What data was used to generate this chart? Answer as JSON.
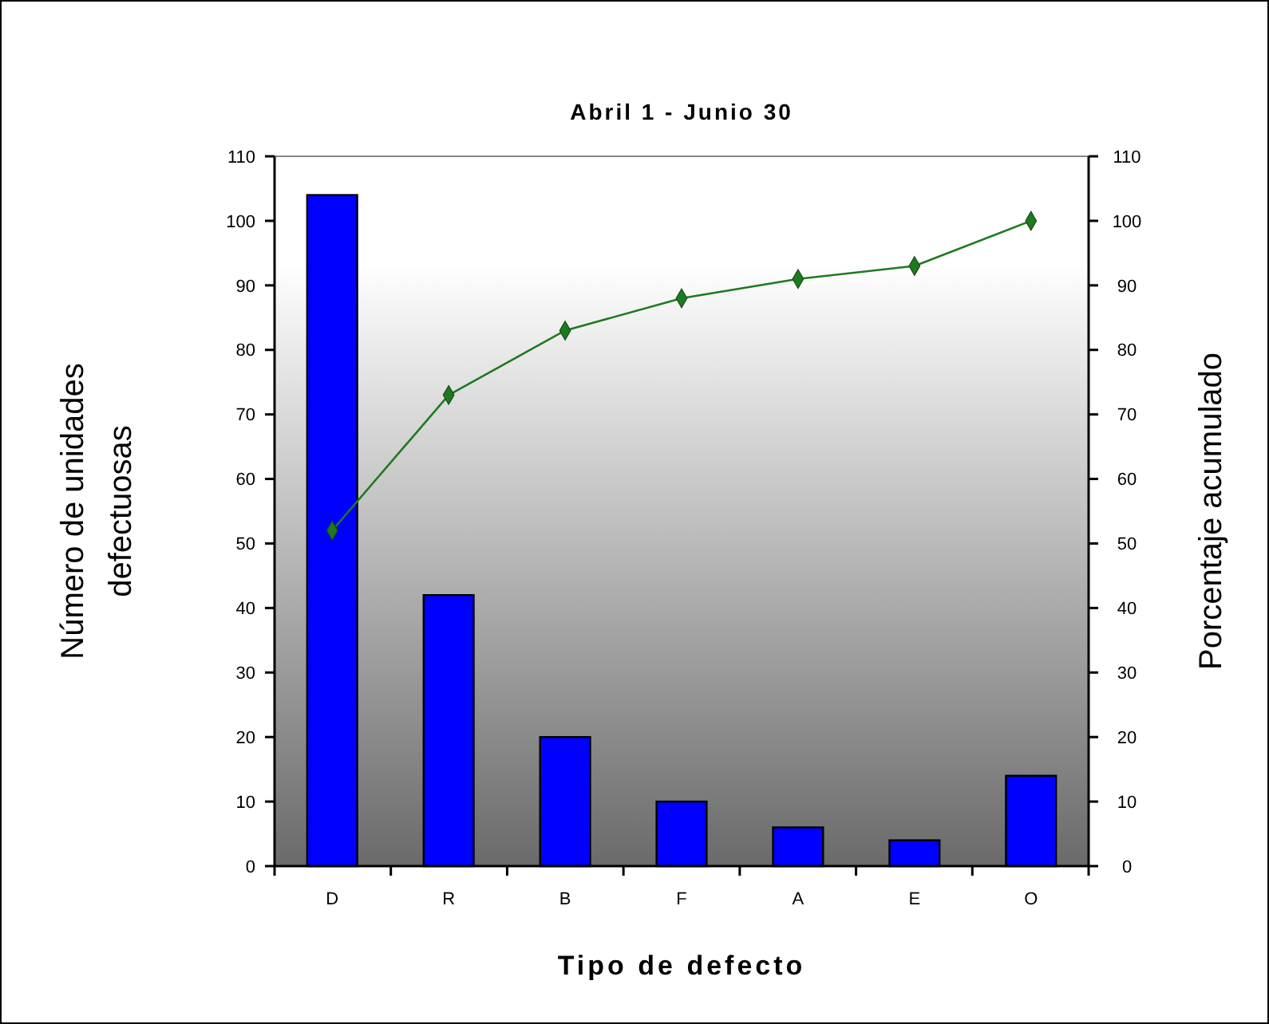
{
  "chart_data": {
    "type": "bar",
    "title": "Abril 1 - Junio 30",
    "xlabel": "Tipo de defecto",
    "ylabel": "Número de unidades defectuosas",
    "y2label": "Porcentaje acumulado",
    "categories": [
      "D",
      "R",
      "B",
      "F",
      "A",
      "E",
      "O"
    ],
    "series": [
      {
        "color": "#0000ff",
        "values": [
          104,
          42,
          20,
          10,
          6,
          4,
          14
        ]
      },
      {
        "type": "line",
        "axis": "y2",
        "color": "#1e7a1e",
        "marker": "diamond",
        "values": [
          52,
          73,
          83,
          88,
          91,
          93,
          100
        ]
      }
    ],
    "ylim": [
      0,
      110
    ],
    "yticks": [
      0,
      10,
      20,
      30,
      40,
      50,
      60,
      70,
      80,
      90,
      100,
      110
    ],
    "y2lim": [
      0,
      110
    ],
    "y2ticks": [
      0,
      10,
      20,
      30,
      40,
      50,
      60,
      70,
      80,
      90,
      100,
      110
    ],
    "grid": false
  }
}
